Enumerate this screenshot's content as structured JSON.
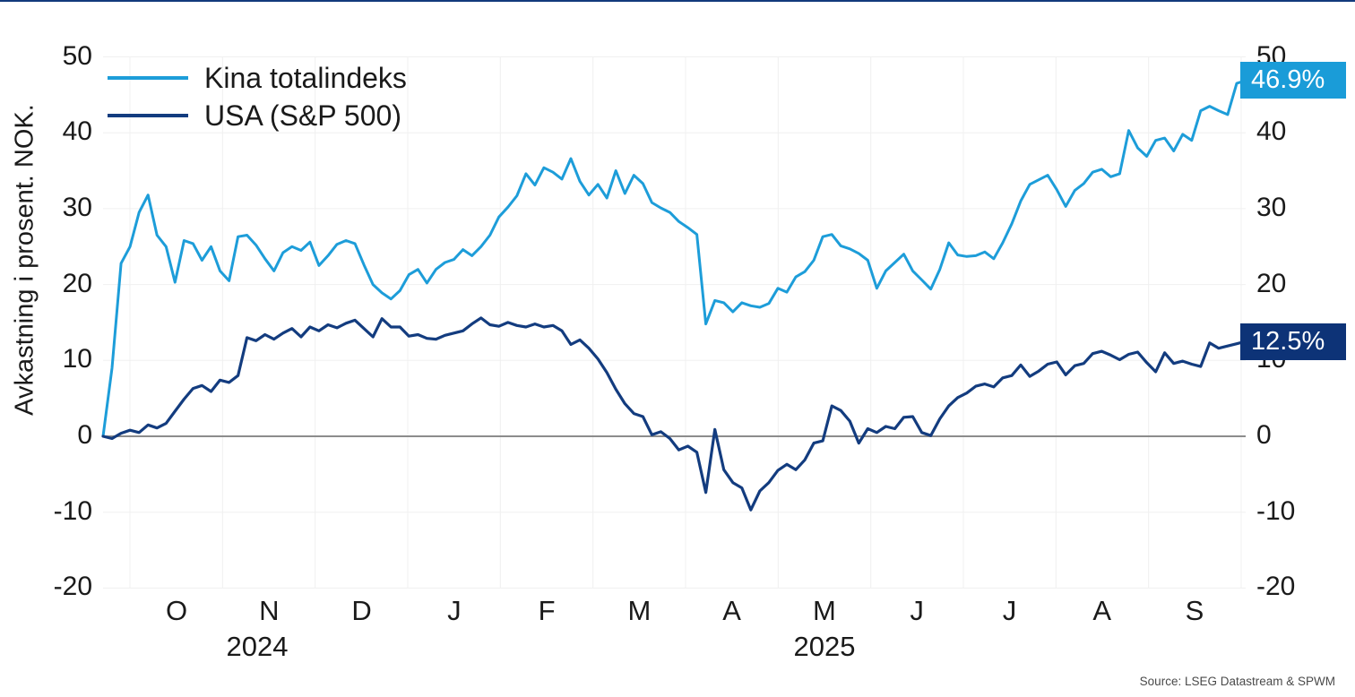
{
  "y_axis": {
    "title": "Avkastning i prosent. NOK.",
    "tick_labels": [
      "50",
      "40",
      "30",
      "20",
      "10",
      "0",
      "-10",
      "-20"
    ],
    "tick_values": [
      50,
      40,
      30,
      20,
      10,
      0,
      -10,
      -20
    ],
    "min": -20,
    "max": 50
  },
  "x_axis": {
    "month_labels": [
      "O",
      "N",
      "D",
      "J",
      "F",
      "M",
      "A",
      "M",
      "J",
      "J",
      "A",
      "S"
    ],
    "year_labels": [
      "2024",
      "2025"
    ]
  },
  "legend": {
    "items": [
      {
        "label": "Kina totalindeks",
        "color": "#1d9dd9"
      },
      {
        "label": "USA (S&P 500)",
        "color": "#133c7f"
      }
    ]
  },
  "end_labels": [
    {
      "text": "46.9%",
      "value": 46.9,
      "color": "#1a9cd8"
    },
    {
      "text": "12.5%",
      "value": 12.5,
      "color": "#0d3377"
    }
  ],
  "source": "Source: LSEG Datastream & SPWM",
  "chart_data": {
    "type": "line",
    "title": "",
    "ylabel": "Avkastning i prosent. NOK.",
    "ylim": [
      -20,
      50
    ],
    "grid": true,
    "legend_position": "top-left",
    "x_range": "mid-September 2024 to late September 2025, points evenly spaced",
    "x_month_ticks": [
      "O",
      "N",
      "D",
      "J",
      "F",
      "M",
      "A",
      "M",
      "J",
      "J",
      "A",
      "S"
    ],
    "zero_line": true,
    "series": [
      {
        "name": "Kina totalindeks",
        "color": "#1d9dd9",
        "final_label": "46.9%",
        "values": [
          0,
          9,
          22.8,
          25,
          29.5,
          31.8,
          26.5,
          25,
          20.3,
          25.8,
          25.4,
          23.2,
          25,
          21.8,
          20.5,
          26.3,
          26.5,
          25.2,
          23.4,
          21.8,
          24.2,
          25,
          24.5,
          25.6,
          22.5,
          23.8,
          25.3,
          25.8,
          25.4,
          22.6,
          20,
          18.9,
          18.1,
          19.2,
          21.3,
          22,
          20.2,
          22,
          22.9,
          23.3,
          24.6,
          23.8,
          25,
          26.5,
          28.9,
          30.2,
          31.7,
          34.6,
          33.1,
          35.4,
          34.8,
          33.9,
          36.6,
          33.6,
          31.8,
          33.2,
          31.4,
          35,
          32,
          34.4,
          33.3,
          30.8,
          30.1,
          29.5,
          28.3,
          27.5,
          26.6,
          14.8,
          17.9,
          17.6,
          16.4,
          17.6,
          17.2,
          17,
          17.5,
          19.5,
          19,
          21,
          21.7,
          23.2,
          26.3,
          26.6,
          25.1,
          24.7,
          24.1,
          23.2,
          19.5,
          21.8,
          22.9,
          24,
          21.8,
          20.6,
          19.4,
          22,
          25.5,
          23.9,
          23.7,
          23.8,
          24.3,
          23.4,
          25.5,
          28,
          31,
          33.2,
          33.8,
          34.4,
          32.5,
          30.3,
          32.4,
          33.3,
          34.8,
          35.2,
          34.2,
          34.6,
          40.3,
          38,
          36.9,
          39,
          39.3,
          37.6,
          39.8,
          39,
          42.9,
          43.5,
          42.9,
          42.4,
          46.5,
          46.9
        ]
      },
      {
        "name": "USA (S&P 500)",
        "color": "#133c7f",
        "final_label": "12.5%",
        "values": [
          0,
          -0.3,
          0.4,
          0.8,
          0.5,
          1.5,
          1.1,
          1.7,
          3.3,
          4.9,
          6.3,
          6.7,
          5.9,
          7.4,
          7.1,
          8,
          13,
          12.6,
          13.4,
          12.8,
          13.6,
          14.2,
          13.1,
          14.4,
          13.9,
          14.7,
          14.3,
          14.9,
          15.3,
          14.2,
          13.1,
          15.5,
          14.4,
          14.4,
          13.2,
          13.4,
          12.9,
          12.8,
          13.3,
          13.6,
          13.9,
          14.8,
          15.6,
          14.7,
          14.5,
          15,
          14.6,
          14.4,
          14.8,
          14.4,
          14.6,
          13.9,
          12.1,
          12.7,
          11.6,
          10.2,
          8.4,
          6.2,
          4.3,
          3,
          2.6,
          0.2,
          0.6,
          -0.3,
          -1.8,
          -1.3,
          -2.1,
          -7.4,
          0.9,
          -4.4,
          -6.1,
          -6.8,
          -9.7,
          -7.2,
          -6.1,
          -4.5,
          -3.7,
          -4.4,
          -3.1,
          -0.9,
          -0.6,
          4,
          3.4,
          2,
          -0.9,
          1,
          0.5,
          1.3,
          1,
          2.5,
          2.6,
          0.5,
          0.1,
          2.3,
          4,
          5.1,
          5.7,
          6.6,
          6.9,
          6.5,
          7.7,
          8,
          9.4,
          7.9,
          8.6,
          9.5,
          9.8,
          8.1,
          9.3,
          9.6,
          10.9,
          11.2,
          10.7,
          10.1,
          10.8,
          11.1,
          9.7,
          8.5,
          11,
          9.6,
          9.9,
          9.5,
          9.2,
          12.3,
          11.6,
          11.9,
          12.2,
          12.5
        ]
      }
    ]
  }
}
